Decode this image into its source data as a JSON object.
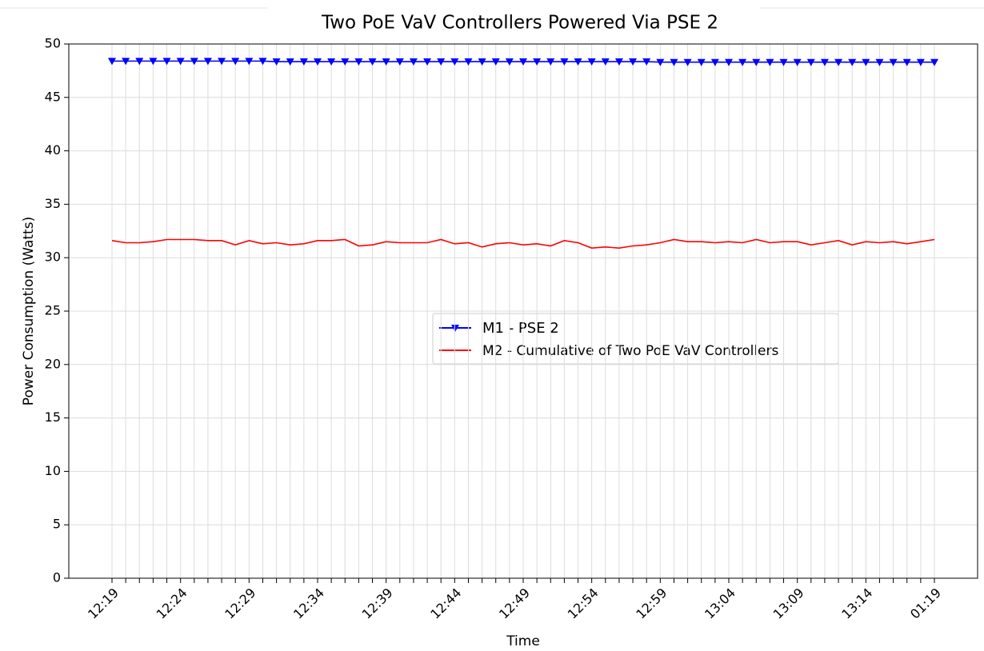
{
  "chart_data": {
    "type": "line",
    "title": "Two PoE VaV Controllers Powered Via PSE 2",
    "x_label": "Time",
    "y_label": "Power Consumption (Watts)",
    "categories": [
      "12:19",
      null,
      null,
      null,
      null,
      "12:24",
      null,
      null,
      null,
      null,
      "12:29",
      null,
      null,
      null,
      null,
      "12:34",
      null,
      null,
      null,
      null,
      "12:39",
      null,
      null,
      null,
      null,
      "12:44",
      null,
      null,
      null,
      null,
      "12:49",
      null,
      null,
      null,
      null,
      "12:54",
      null,
      null,
      null,
      null,
      "12:59",
      null,
      null,
      null,
      null,
      "13:04",
      null,
      null,
      null,
      null,
      "13:09",
      null,
      null,
      null,
      null,
      "13:14",
      null,
      null,
      null,
      null,
      "01:19"
    ],
    "series": [
      {
        "name": "M1  - PSE 2",
        "color": "#0000ff",
        "marker": "v",
        "values": [
          48.4,
          48.4,
          48.4,
          48.4,
          48.4,
          48.4,
          48.4,
          48.4,
          48.4,
          48.4,
          48.4,
          48.4,
          48.35,
          48.35,
          48.35,
          48.35,
          48.35,
          48.35,
          48.35,
          48.35,
          48.35,
          48.35,
          48.35,
          48.35,
          48.35,
          48.35,
          48.35,
          48.35,
          48.35,
          48.35,
          48.35,
          48.35,
          48.35,
          48.35,
          48.35,
          48.35,
          48.35,
          48.35,
          48.35,
          48.35,
          48.3,
          48.3,
          48.3,
          48.3,
          48.3,
          48.3,
          48.3,
          48.3,
          48.3,
          48.3,
          48.3,
          48.3,
          48.3,
          48.3,
          48.3,
          48.3,
          48.3,
          48.3,
          48.3,
          48.3,
          48.3
        ]
      },
      {
        "name": "M2 - Cumulative of Two PoE VaV Controllers",
        "color": "#ff0000",
        "marker": null,
        "values": [
          31.6,
          31.4,
          31.4,
          31.5,
          31.7,
          31.7,
          31.7,
          31.6,
          31.6,
          31.2,
          31.6,
          31.3,
          31.4,
          31.2,
          31.3,
          31.6,
          31.6,
          31.7,
          31.1,
          31.2,
          31.5,
          31.4,
          31.4,
          31.4,
          31.7,
          31.3,
          31.4,
          31.0,
          31.3,
          31.4,
          31.2,
          31.3,
          31.1,
          31.6,
          31.4,
          30.9,
          31.0,
          30.9,
          31.1,
          31.2,
          31.4,
          31.7,
          31.5,
          31.5,
          31.4,
          31.5,
          31.4,
          31.7,
          31.4,
          31.5,
          31.5,
          31.2,
          31.4,
          31.6,
          31.2,
          31.5,
          31.4,
          31.5,
          31.3,
          31.5,
          31.7
        ]
      }
    ],
    "ylim": [
      0,
      50
    ],
    "yticks": [
      0,
      5,
      10,
      15,
      20,
      25,
      30,
      35,
      40,
      45,
      50
    ],
    "grid": true
  }
}
